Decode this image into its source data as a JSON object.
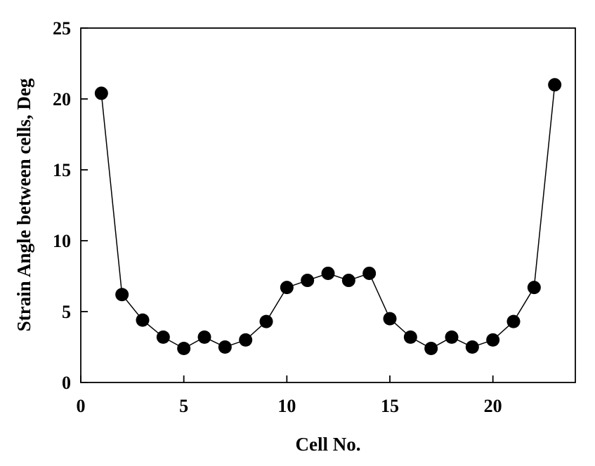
{
  "chart_data": {
    "type": "line",
    "xlabel": "Cell No.",
    "ylabel": "Strain Angle between cells, Deg",
    "xlim": [
      0,
      24
    ],
    "ylim": [
      0,
      25
    ],
    "xticks": [
      0,
      5,
      10,
      15,
      20
    ],
    "yticks": [
      0,
      5,
      10,
      15,
      20,
      25
    ],
    "grid": false,
    "series": [
      {
        "x": [
          1,
          2,
          3,
          4,
          5,
          6,
          7,
          8,
          9,
          10,
          11,
          12,
          13,
          14,
          15,
          16,
          17,
          18,
          19,
          20,
          21,
          22,
          23
        ],
        "y": [
          20.4,
          6.2,
          4.4,
          3.2,
          2.4,
          3.2,
          2.5,
          3.0,
          4.3,
          6.7,
          7.2,
          7.7,
          7.2,
          7.7,
          4.5,
          3.2,
          2.4,
          3.2,
          2.5,
          3.0,
          4.3,
          6.7,
          21.0
        ]
      }
    ]
  }
}
